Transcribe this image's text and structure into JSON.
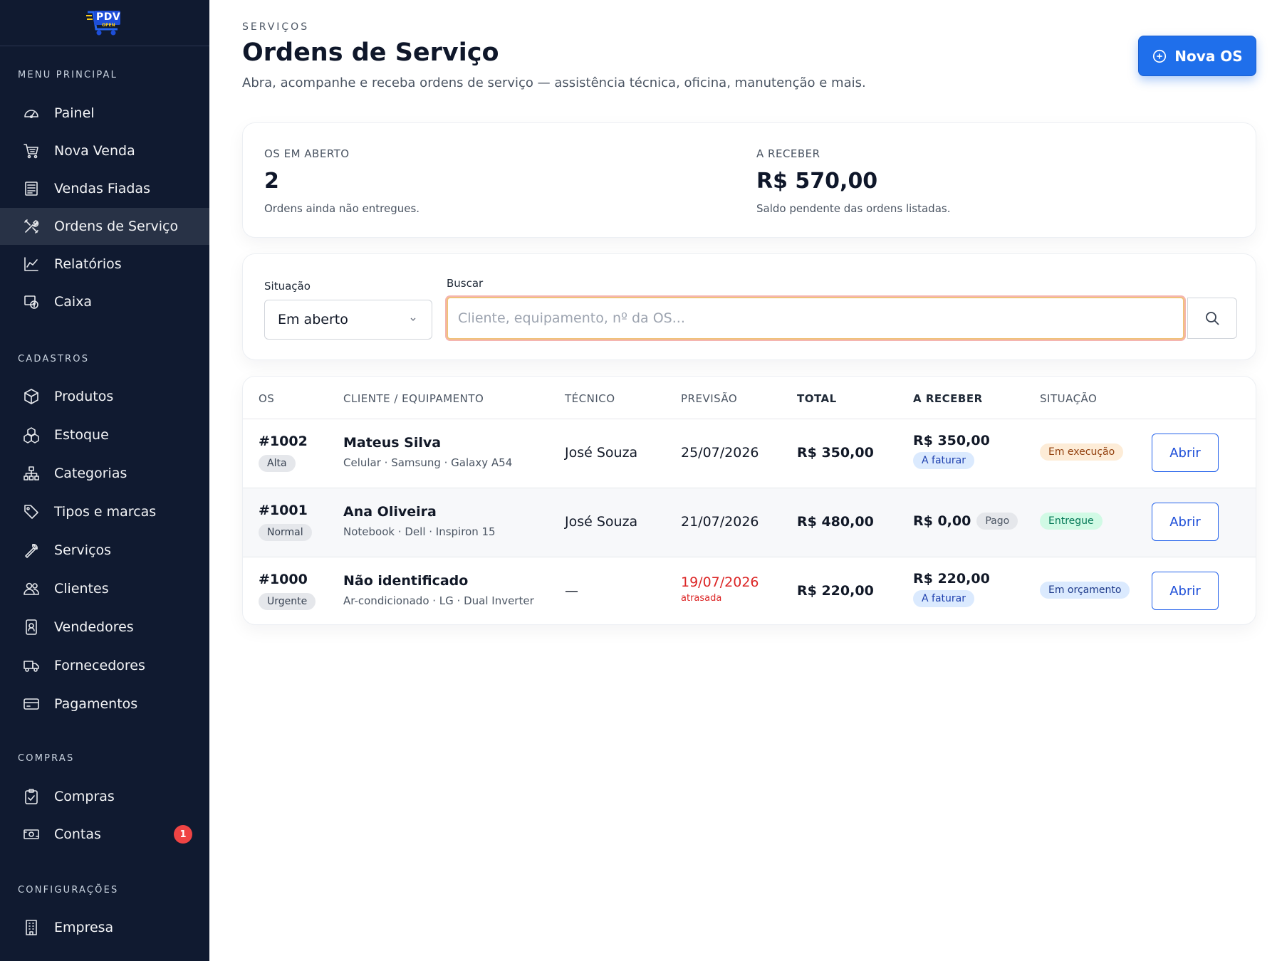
{
  "logo": {
    "text": "PDV",
    "sub": "OPEN"
  },
  "sidebar": {
    "sections": [
      {
        "title": "MENU PRINCIPAL"
      },
      {
        "title": "CADASTROS"
      },
      {
        "title": "COMPRAS"
      },
      {
        "title": "CONFIGURAÇÕES"
      }
    ],
    "items": [
      {
        "label": "Painel",
        "icon": "gauge-icon"
      },
      {
        "label": "Nova Venda",
        "icon": "cart-icon"
      },
      {
        "label": "Vendas Fiadas",
        "icon": "receipt-icon"
      },
      {
        "label": "Ordens de Serviço",
        "icon": "tools-icon",
        "active": true
      },
      {
        "label": "Relatórios",
        "icon": "chart-icon"
      },
      {
        "label": "Caixa",
        "icon": "cash-register-icon"
      },
      {
        "label": "Produtos",
        "icon": "box-icon"
      },
      {
        "label": "Estoque",
        "icon": "boxes-icon"
      },
      {
        "label": "Categorias",
        "icon": "sitemap-icon"
      },
      {
        "label": "Tipos e marcas",
        "icon": "tag-icon"
      },
      {
        "label": "Serviços",
        "icon": "wrench-icon"
      },
      {
        "label": "Clientes",
        "icon": "users-icon"
      },
      {
        "label": "Vendedores",
        "icon": "id-badge-icon"
      },
      {
        "label": "Fornecedores",
        "icon": "truck-icon"
      },
      {
        "label": "Pagamentos",
        "icon": "credit-card-icon"
      },
      {
        "label": "Compras",
        "icon": "clipboard-icon"
      },
      {
        "label": "Contas",
        "icon": "money-icon",
        "badge": "1"
      },
      {
        "label": "Empresa",
        "icon": "building-icon"
      }
    ]
  },
  "header": {
    "eyebrow": "SERVIÇOS",
    "title": "Ordens de Serviço",
    "subtitle": "Abra, acompanhe e receba ordens de serviço — assistência técnica, oficina, manutenção e mais.",
    "new_button": "Nova OS"
  },
  "stats": {
    "open": {
      "label": "OS EM ABERTO",
      "value": "2",
      "desc": "Ordens ainda não entregues."
    },
    "receivable": {
      "label": "A RECEBER",
      "value": "R$ 570,00",
      "desc": "Saldo pendente das ordens listadas."
    }
  },
  "filters": {
    "status_label": "Situação",
    "status_value": "Em aberto",
    "search_label": "Buscar",
    "search_placeholder": "Cliente, equipamento, nº da OS...",
    "search_value": ""
  },
  "table": {
    "columns": [
      "OS",
      "CLIENTE / EQUIPAMENTO",
      "TÉCNICO",
      "PREVISÃO",
      "TOTAL",
      "A RECEBER",
      "SITUAÇÃO"
    ],
    "rows": [
      {
        "os": "#1002",
        "priority": "Alta",
        "client": "Mateus Silva",
        "equipment": "Celular · Samsung · Galaxy A54",
        "technician": "José Souza",
        "forecast": "25/07/2026",
        "total": "R$ 350,00",
        "receivable": "R$ 350,00",
        "receivable_tag": "A faturar",
        "status": "Em execução",
        "action": "Abrir"
      },
      {
        "os": "#1001",
        "priority": "Normal",
        "client": "Ana Oliveira",
        "equipment": "Notebook · Dell · Inspiron 15",
        "technician": "José Souza",
        "forecast": "21/07/2026",
        "total": "R$ 480,00",
        "receivable": "R$ 0,00",
        "receivable_tag": "Pago",
        "status": "Entregue",
        "action": "Abrir"
      },
      {
        "os": "#1000",
        "priority": "Urgente",
        "client": "Não identificado",
        "equipment": "Ar-condicionado · LG · Dual Inverter",
        "technician": "—",
        "forecast": "19/07/2026",
        "forecast_note": "atrasada",
        "total": "R$ 220,00",
        "receivable": "R$ 220,00",
        "receivable_tag": "A faturar",
        "status": "Em orçamento",
        "action": "Abrir"
      }
    ]
  },
  "colors": {
    "sidebar_bg": "#101a30",
    "accent": "#1f6feb",
    "danger": "#dc2626"
  }
}
